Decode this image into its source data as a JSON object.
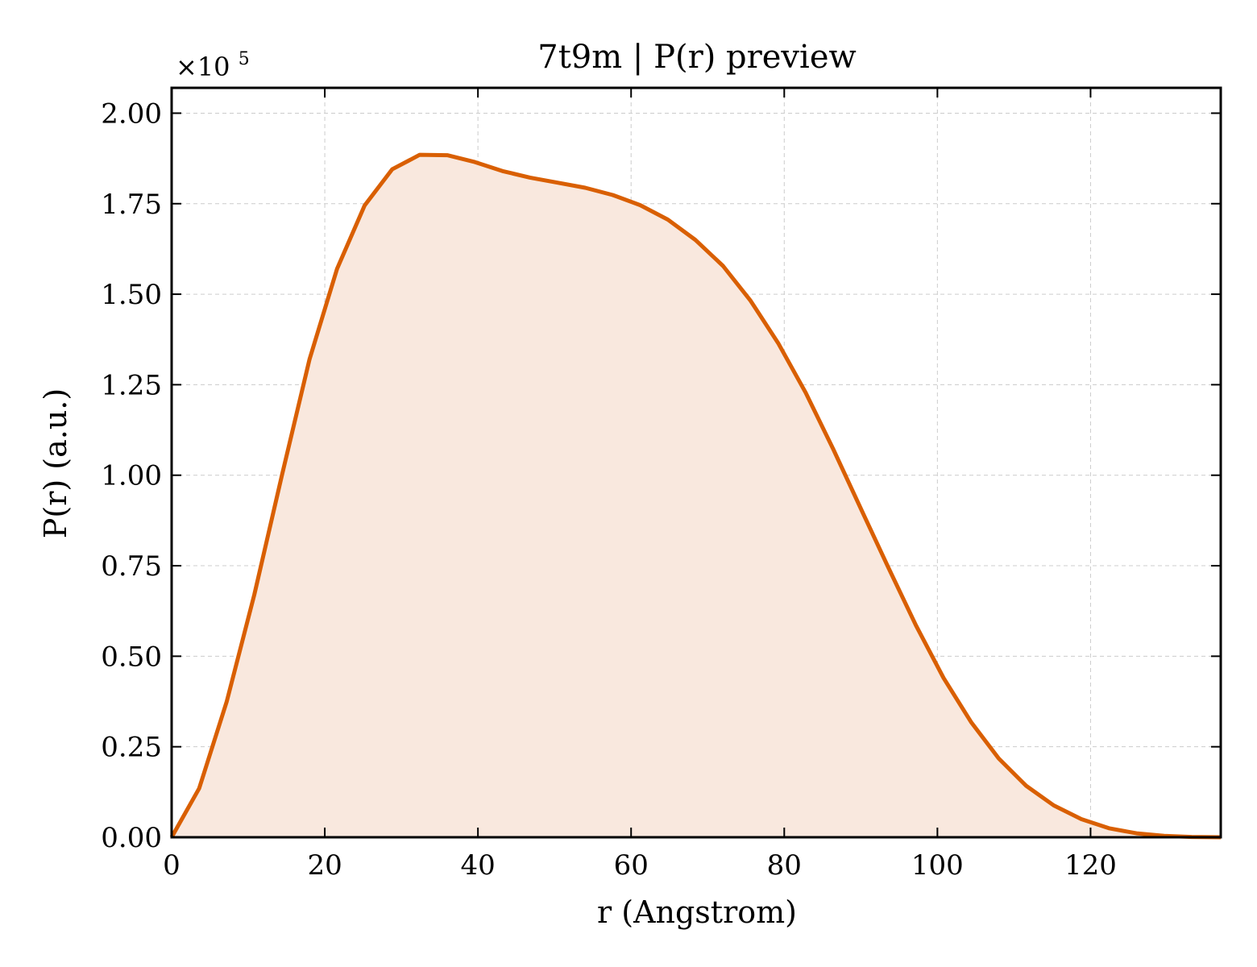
{
  "chart_data": {
    "type": "area",
    "title": "7t9m | P(r) preview",
    "xlabel": "r (Angstrom)",
    "ylabel": "P(r) (a.u.)",
    "y_multiplier": "×10",
    "y_multiplier_exp": "5",
    "xlim": [
      0,
      137
    ],
    "ylim": [
      0,
      2.07
    ],
    "x_ticks": [
      0,
      20,
      40,
      60,
      80,
      100,
      120
    ],
    "x_tick_labels": [
      "0",
      "20",
      "40",
      "60",
      "80",
      "100",
      "120"
    ],
    "y_ticks": [
      0,
      0.25,
      0.5,
      0.75,
      1.0,
      1.25,
      1.5,
      1.75,
      2.0
    ],
    "y_tick_labels": [
      "0.00",
      "0.25",
      "0.50",
      "0.75",
      "1.00",
      "1.25",
      "1.50",
      "1.75",
      "2.00"
    ],
    "grid": true,
    "series": [
      {
        "color": "#d95f02",
        "fill_color": "#f9e8de",
        "x": [
          0,
          3.6,
          7.2,
          10.8,
          14.4,
          18.0,
          21.6,
          25.2,
          28.8,
          32.4,
          36.0,
          39.6,
          43.2,
          46.8,
          50.4,
          54.0,
          57.6,
          61.2,
          64.8,
          68.4,
          72.0,
          75.6,
          79.2,
          82.8,
          86.4,
          90.0,
          93.6,
          97.2,
          100.8,
          104.4,
          108.0,
          111.6,
          115.2,
          118.8,
          122.4,
          126.0,
          129.6,
          133.2,
          137.0
        ],
        "y": [
          0.0,
          0.135,
          0.375,
          0.67,
          1.0,
          1.32,
          1.57,
          1.745,
          1.845,
          1.885,
          1.884,
          1.865,
          1.84,
          1.822,
          1.808,
          1.794,
          1.774,
          1.746,
          1.706,
          1.65,
          1.578,
          1.482,
          1.365,
          1.228,
          1.072,
          0.908,
          0.745,
          0.585,
          0.44,
          0.318,
          0.218,
          0.142,
          0.088,
          0.05,
          0.025,
          0.011,
          0.004,
          0.001,
          0.0
        ]
      }
    ]
  }
}
